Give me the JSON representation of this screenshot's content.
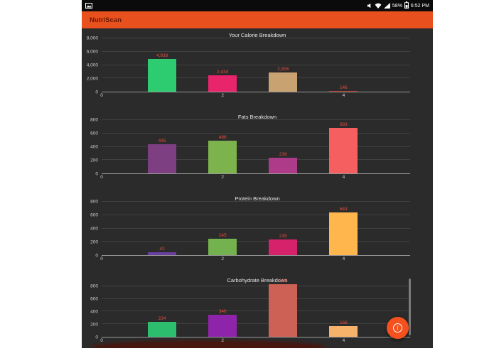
{
  "status_bar": {
    "time": "6:52 PM",
    "battery_percent": "58%",
    "left_icons": [
      "screenshot-icon"
    ],
    "right_icons": [
      "volume-icon",
      "wifi-icon",
      "signal-icon",
      "battery-icon"
    ]
  },
  "app_bar": {
    "title": "NutriScan",
    "bg": "#e8501e",
    "title_color": "#6d1a02"
  },
  "fab": {
    "icon": "info-icon",
    "glyph": "i",
    "bg": "#f4511e"
  },
  "misc": {
    "partial_fragment_color": "#471710",
    "content_bg": "#2b2b2b"
  },
  "chart_data": [
    {
      "type": "bar",
      "title": "Your Calorie Breakdown",
      "x": [
        1,
        2,
        3,
        4
      ],
      "values": [
        4938,
        2434,
        2906,
        146
      ],
      "value_labels": [
        "4,938",
        "2,434",
        "2,906",
        "146"
      ],
      "colors": [
        "#2ecc71",
        "#e8256b",
        "#c9a272",
        "#a93226"
      ],
      "xlim": [
        0,
        5.1
      ],
      "ylim": [
        0,
        8000
      ],
      "yticks": [
        0,
        2000,
        4000,
        6000,
        8000
      ],
      "ytick_labels": [
        "0",
        "2,000",
        "4,000",
        "6,000",
        "8,000"
      ],
      "xticks": [
        0,
        2,
        4
      ],
      "xtick_labels": [
        "0",
        "2",
        "4"
      ],
      "value_label_color": "#e74c3c",
      "grid": true,
      "legend": false
    },
    {
      "type": "bar",
      "title": "Fats Breakdown",
      "x": [
        1,
        2,
        3,
        4
      ],
      "values": [
        435,
        486,
        236,
        683
      ],
      "value_labels": [
        "435",
        "486",
        "236",
        "683"
      ],
      "colors": [
        "#7d3f82",
        "#7cb34c",
        "#ad3b8a",
        "#f55f5f"
      ],
      "xlim": [
        0,
        5.1
      ],
      "ylim": [
        0,
        800
      ],
      "yticks": [
        0,
        200,
        400,
        600,
        800
      ],
      "ytick_labels": [
        "0",
        "200",
        "400",
        "600",
        "800"
      ],
      "xticks": [
        0,
        2,
        4
      ],
      "xtick_labels": [
        "0",
        "2",
        "4"
      ],
      "value_label_color": "#e74c3c",
      "grid": true,
      "legend": false
    },
    {
      "type": "bar",
      "title": "Protein Breakdown",
      "x": [
        1,
        2,
        3,
        4
      ],
      "values": [
        42,
        245,
        235,
        643
      ],
      "value_labels": [
        "42",
        "245",
        "235",
        "643"
      ],
      "colors": [
        "#6b3fa0",
        "#74b14f",
        "#d6216b",
        "#ffb74d"
      ],
      "xlim": [
        0,
        5.1
      ],
      "ylim": [
        0,
        800
      ],
      "yticks": [
        0,
        200,
        400,
        600,
        800
      ],
      "ytick_labels": [
        "0",
        "200",
        "400",
        "600",
        "800"
      ],
      "xticks": [
        0,
        2,
        4
      ],
      "xtick_labels": [
        "0",
        "2",
        "4"
      ],
      "value_label_color": "#e74c3c",
      "grid": true,
      "legend": false
    },
    {
      "type": "bar",
      "title": "Carbohydrate Breakdown",
      "x": [
        1,
        2,
        3,
        4
      ],
      "values": [
        234,
        346,
        828,
        166
      ],
      "value_labels": [
        "234",
        "346",
        "828",
        "166"
      ],
      "colors": [
        "#2dbd6e",
        "#8e24aa",
        "#cd6155",
        "#f6b26b"
      ],
      "xlim": [
        0,
        5.1
      ],
      "ylim": [
        0,
        800
      ],
      "yticks": [
        0,
        200,
        400,
        600,
        800
      ],
      "ytick_labels": [
        "0",
        "200",
        "400",
        "600",
        "800"
      ],
      "xticks": [
        0,
        2,
        4
      ],
      "xtick_labels": [
        "0",
        "2",
        "4"
      ],
      "value_label_color": "#e74c3c",
      "grid": true,
      "legend": false
    }
  ]
}
